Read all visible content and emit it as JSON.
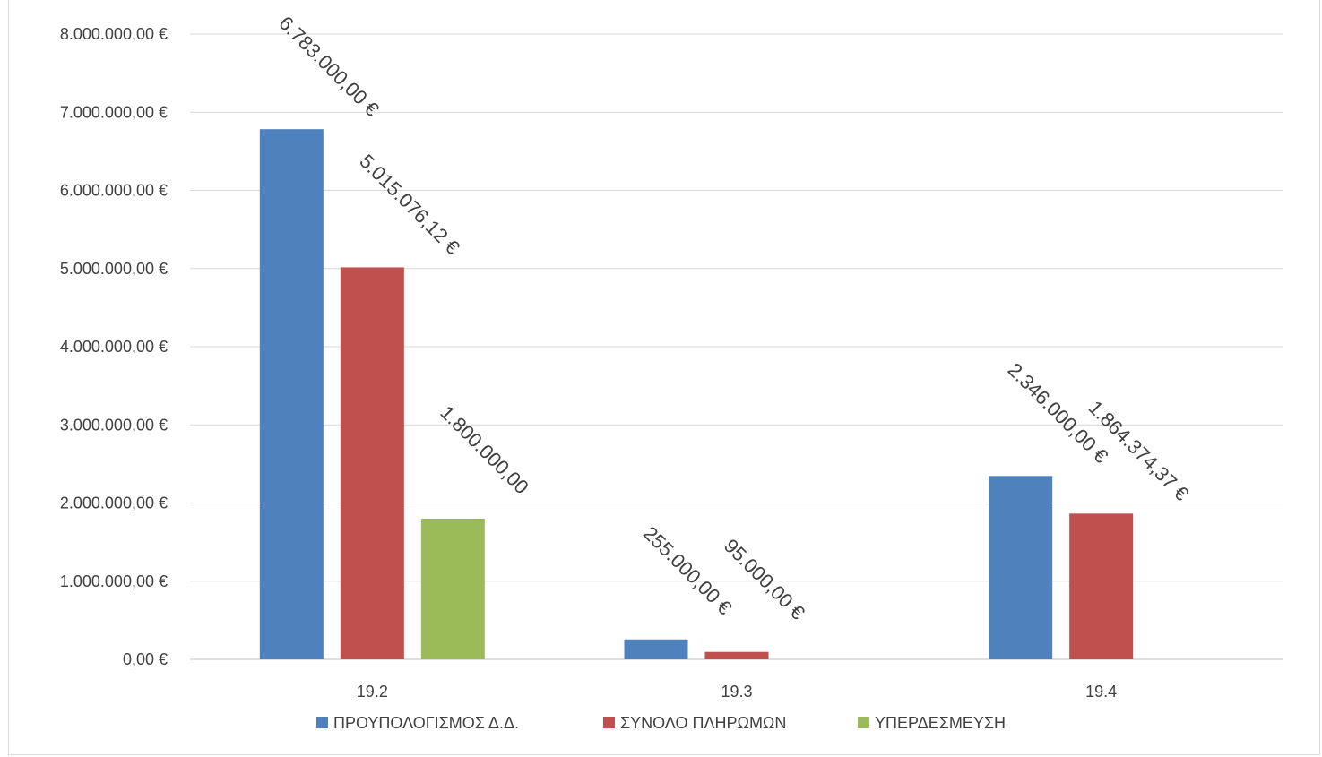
{
  "chart_data": {
    "type": "bar",
    "categories": [
      "19.2",
      "19.3",
      "19.4"
    ],
    "series": [
      {
        "name": "ΠΡΟΥΠΟΛΟΓΙΣΜΟΣ Δ.Δ.",
        "color": "#4f81bd",
        "values": [
          6783000,
          255000,
          2346000
        ],
        "labels": [
          "6.783.000,00 €",
          "255.000,00 €",
          "2.346.000,00 €"
        ]
      },
      {
        "name": "ΣΥΝΟΛΟ ΠΛΗΡΩΜΩΝ",
        "color": "#c0504d",
        "values": [
          5015076.12,
          95000,
          1864374.37
        ],
        "labels": [
          "5.015.076,12 €",
          "95.000,00 €",
          "1.864.374,37 €"
        ]
      },
      {
        "name": "ΥΠΕΡΔΕΣΜΕΥΣΗ",
        "color": "#9bbb59",
        "values": [
          1800000,
          null,
          null
        ],
        "labels": [
          "1.800.000,00",
          null,
          null
        ]
      }
    ],
    "ylim": [
      0,
      8000000
    ],
    "y_ticks": [
      {
        "value": 0,
        "label": "0,00 €"
      },
      {
        "value": 1000000,
        "label": "1.000.000,00 €"
      },
      {
        "value": 2000000,
        "label": "2.000.000,00 €"
      },
      {
        "value": 3000000,
        "label": "3.000.000,00 €"
      },
      {
        "value": 4000000,
        "label": "4.000.000,00 €"
      },
      {
        "value": 5000000,
        "label": "5.000.000,00 €"
      },
      {
        "value": 6000000,
        "label": "6.000.000,00 €"
      },
      {
        "value": 7000000,
        "label": "7.000.000,00 €"
      },
      {
        "value": 8000000,
        "label": "8.000.000,00 €"
      }
    ],
    "grid": true,
    "legend_position": "bottom",
    "title": "",
    "xlabel": "",
    "ylabel": ""
  }
}
